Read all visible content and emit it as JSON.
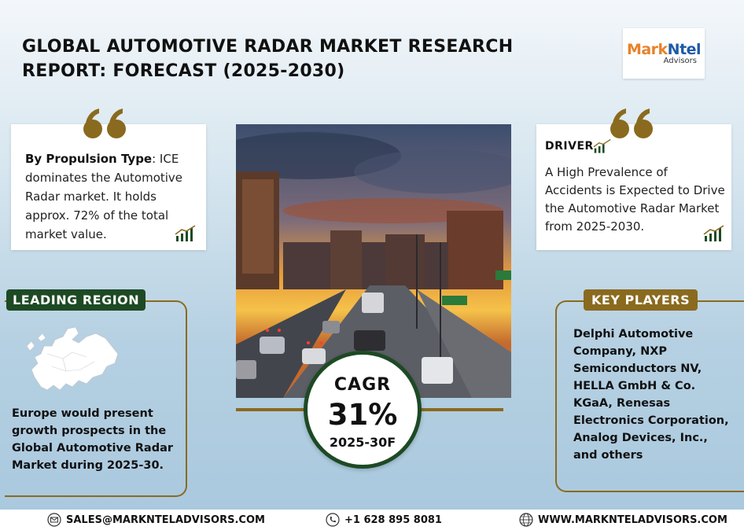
{
  "title": "GLOBAL AUTOMOTIVE RADAR MARKET RESEARCH REPORT: FORECAST (2025-2030)",
  "logo": {
    "mark": "Mark",
    "ntel": "Ntel",
    "sub": "Advisors"
  },
  "propulsion": {
    "heading": "By Propulsion Type",
    "text": ": ICE dominates the Automotive Radar market. It holds approx. 72% of the total market value."
  },
  "driver": {
    "label": "DRIVER",
    "text": "A High Prevalence of Accidents is Expected to Drive the Automotive Radar Market from 2025-2030."
  },
  "cagr": {
    "label": "CAGR",
    "value": "31%",
    "period": "2025-30F"
  },
  "region": {
    "tag": "LEADING REGION",
    "text": "Europe would present growth prospects in the Global Automotive Radar Market during 2025-30."
  },
  "players": {
    "tag": "KEY PLAYERS",
    "text": "Delphi Automotive Company, NXP Semiconductors NV, HELLA GmbH & Co. KGaA, Renesas Electronics Corporation, Analog Devices, Inc., and others"
  },
  "footer": {
    "email": "SALES@MARKNTELADVISORS.COM",
    "phone": "+1 628 895 8081",
    "website": "WWW.MARKNTELADVISORS.COM"
  },
  "colors": {
    "green": "#1d4a24",
    "gold": "#8a6a1e",
    "logo_orange": "#e8822a",
    "logo_blue": "#1e5aa8"
  },
  "icons": [
    "quote-icon",
    "growth-bars-icon",
    "europe-map-icon",
    "mail-icon",
    "phone-icon",
    "globe-icon"
  ]
}
